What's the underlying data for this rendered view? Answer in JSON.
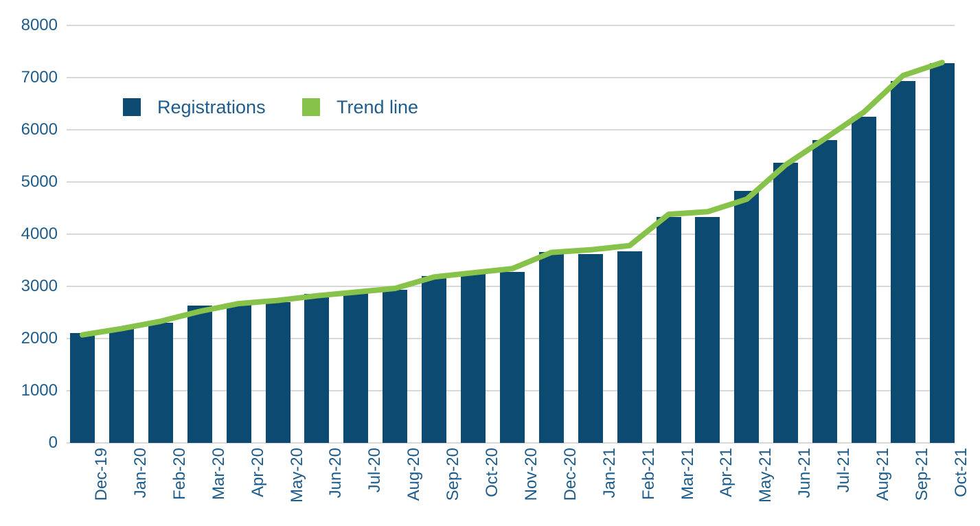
{
  "chart_data": {
    "type": "bar",
    "title": "",
    "xlabel": "",
    "ylabel": "",
    "ylim": [
      0,
      8000
    ],
    "yticks": [
      0,
      1000,
      2000,
      3000,
      4000,
      5000,
      6000,
      7000,
      8000
    ],
    "grid": "horizontal",
    "legend_position": "top-left-inside",
    "categories": [
      "Dec-19",
      "Jan-20",
      "Feb-20",
      "Mar-20",
      "Apr-20",
      "May-20",
      "Jun-20",
      "Jul-20",
      "Aug-20",
      "Sep-20",
      "Oct-20",
      "Nov-20",
      "Dec-20",
      "Jan-21",
      "Feb-21",
      "Mar-21",
      "Apr-21",
      "May-21",
      "Jun-21",
      "Jul-21",
      "Aug-21",
      "Sep-21",
      "Oct-21"
    ],
    "series": [
      {
        "name": "Registrations",
        "type": "bar",
        "color": "#0d4a72",
        "values": [
          2100,
          2180,
          2300,
          2630,
          2660,
          2700,
          2860,
          2910,
          2940,
          3200,
          3250,
          3280,
          3660,
          3620,
          3670,
          4330,
          4330,
          4830,
          5370,
          5800,
          6250,
          6940,
          7280
        ]
      },
      {
        "name": "Trend line",
        "type": "line",
        "color": "#87c24b",
        "values": [
          2070,
          2190,
          2330,
          2520,
          2670,
          2730,
          2820,
          2890,
          2960,
          3180,
          3260,
          3340,
          3650,
          3700,
          3780,
          4380,
          4430,
          4670,
          5330,
          5830,
          6340,
          7040,
          7290
        ]
      }
    ]
  },
  "legend": {
    "registrations_label": "Registrations",
    "trend_label": "Trend line"
  },
  "colors": {
    "bar": "#0d4a72",
    "trend": "#87c24b",
    "axis_text": "#1e5c8c",
    "gridline": "#d8d8d8",
    "background": "#ffffff"
  }
}
